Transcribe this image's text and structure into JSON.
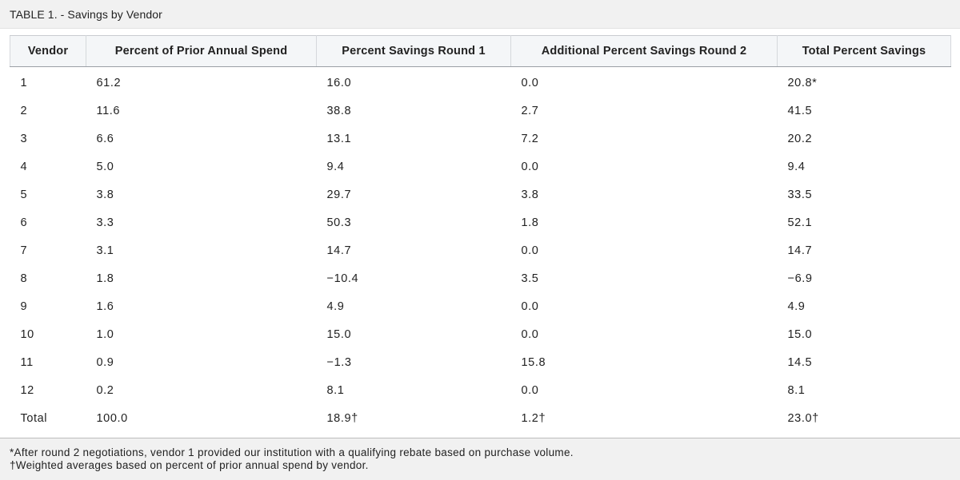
{
  "caption": "TABLE 1. - Savings by Vendor",
  "table": {
    "headers": [
      "Vendor",
      "Percent of Prior Annual Spend",
      "Percent Savings Round 1",
      "Additional Percent Savings Round 2",
      "Total Percent Savings"
    ],
    "rows": [
      [
        "1",
        "61.2",
        "16.0",
        "0.0",
        "20.8*"
      ],
      [
        "2",
        "11.6",
        "38.8",
        "2.7",
        "41.5"
      ],
      [
        "3",
        "6.6",
        "13.1",
        "7.2",
        "20.2"
      ],
      [
        "4",
        "5.0",
        "9.4",
        "0.0",
        "9.4"
      ],
      [
        "5",
        "3.8",
        "29.7",
        "3.8",
        "33.5"
      ],
      [
        "6",
        "3.3",
        "50.3",
        "1.8",
        "52.1"
      ],
      [
        "7",
        "3.1",
        "14.7",
        "0.0",
        "14.7"
      ],
      [
        "8",
        "1.8",
        "−10.4",
        "3.5",
        "−6.9"
      ],
      [
        "9",
        "1.6",
        "4.9",
        "0.0",
        "4.9"
      ],
      [
        "10",
        "1.0",
        "15.0",
        "0.0",
        "15.0"
      ],
      [
        "11",
        "0.9",
        "−1.3",
        "15.8",
        "14.5"
      ],
      [
        "12",
        "0.2",
        "8.1",
        "0.0",
        "8.1"
      ],
      [
        "Total",
        "100.0",
        "18.9†",
        "1.2†",
        "23.0†"
      ]
    ]
  },
  "footnotes": [
    "*After round 2 negotiations, vendor 1 provided our institution with a qualifying rebate based on purchase volume.",
    "†Weighted averages based on percent of prior annual spend by vendor."
  ]
}
